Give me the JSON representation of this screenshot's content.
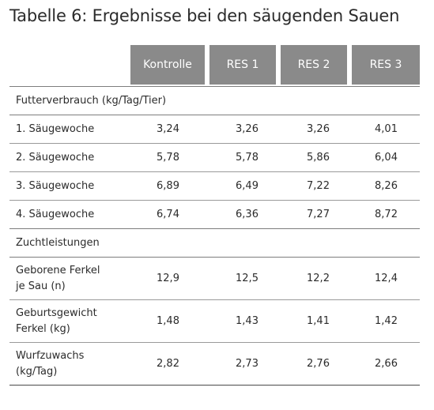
{
  "title": "Tabelle 6: Ergebnisse bei den säugenden Sauen",
  "columns": [
    "Kontrolle",
    "RES 1",
    "RES 2",
    "RES 3"
  ],
  "sections": [
    {
      "heading": "Futterverbrauch (kg/Tag/Tier)",
      "rows": [
        {
          "label": "1. Säugewoche",
          "values": [
            "3,24",
            "3,26",
            "3,26",
            "4,01"
          ]
        },
        {
          "label": "2. Säugewoche",
          "values": [
            "5,78",
            "5,78",
            "5,86",
            "6,04"
          ]
        },
        {
          "label": "3. Säugewoche",
          "values": [
            "6,89",
            "6,49",
            "7,22",
            "8,26"
          ]
        },
        {
          "label": "4. Säugewoche",
          "values": [
            "6,74",
            "6,36",
            "7,27",
            "8,72"
          ]
        }
      ]
    },
    {
      "heading": "Zuchtleistungen",
      "rows": [
        {
          "label": "Geborene Ferkel je Sau (n)",
          "values": [
            "12,9",
            "12,5",
            "12,2",
            "12,4"
          ]
        },
        {
          "label": "Geburtsgewicht Ferkel (kg)",
          "values": [
            "1,48",
            "1,43",
            "1,41",
            "1,42"
          ]
        },
        {
          "label": "Wurfzuwachs (kg/Tag)",
          "values": [
            "2,82",
            "2,73",
            "2,76",
            "2,66"
          ]
        }
      ]
    }
  ]
}
